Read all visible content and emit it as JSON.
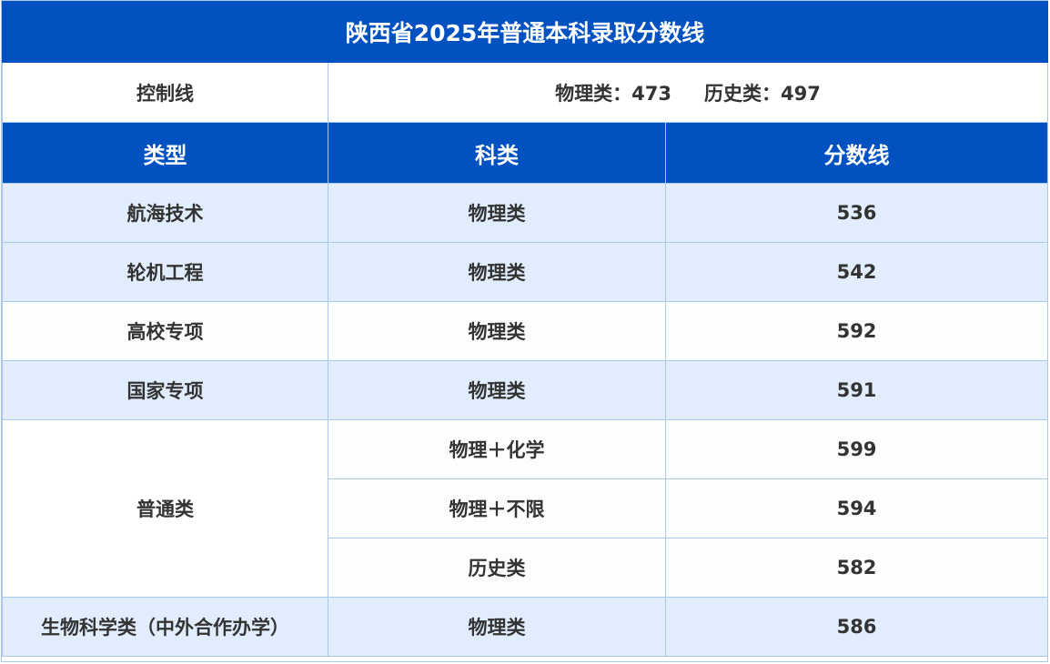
{
  "title": "陕西省2025年普通本科录取分数线",
  "control": {
    "label": "控制线",
    "physics": "物理类：473",
    "history": "历史类：497"
  },
  "headers": {
    "type": "类型",
    "subject": "科类",
    "score": "分数线"
  },
  "rows": [
    {
      "type": "航海技术",
      "subject": "物理类",
      "score": "536"
    },
    {
      "type": "轮机工程",
      "subject": "物理类",
      "score": "542"
    },
    {
      "type": "高校专项",
      "subject": "物理类",
      "score": "592"
    },
    {
      "type": "国家专项",
      "subject": "物理类",
      "score": "591"
    },
    {
      "type": "普通类",
      "subject": "物理＋化学",
      "score": "599"
    },
    {
      "subject": "物理＋不限",
      "score": "594"
    },
    {
      "subject": "历史类",
      "score": "582"
    },
    {
      "type": "生物科学类（中外合作办学）",
      "subject": "物理类",
      "score": "586"
    }
  ],
  "colors": {
    "header_bg": "#0151c0",
    "row_light": "#e1edfd",
    "border": "#a9c9ec",
    "text": "#333333"
  }
}
